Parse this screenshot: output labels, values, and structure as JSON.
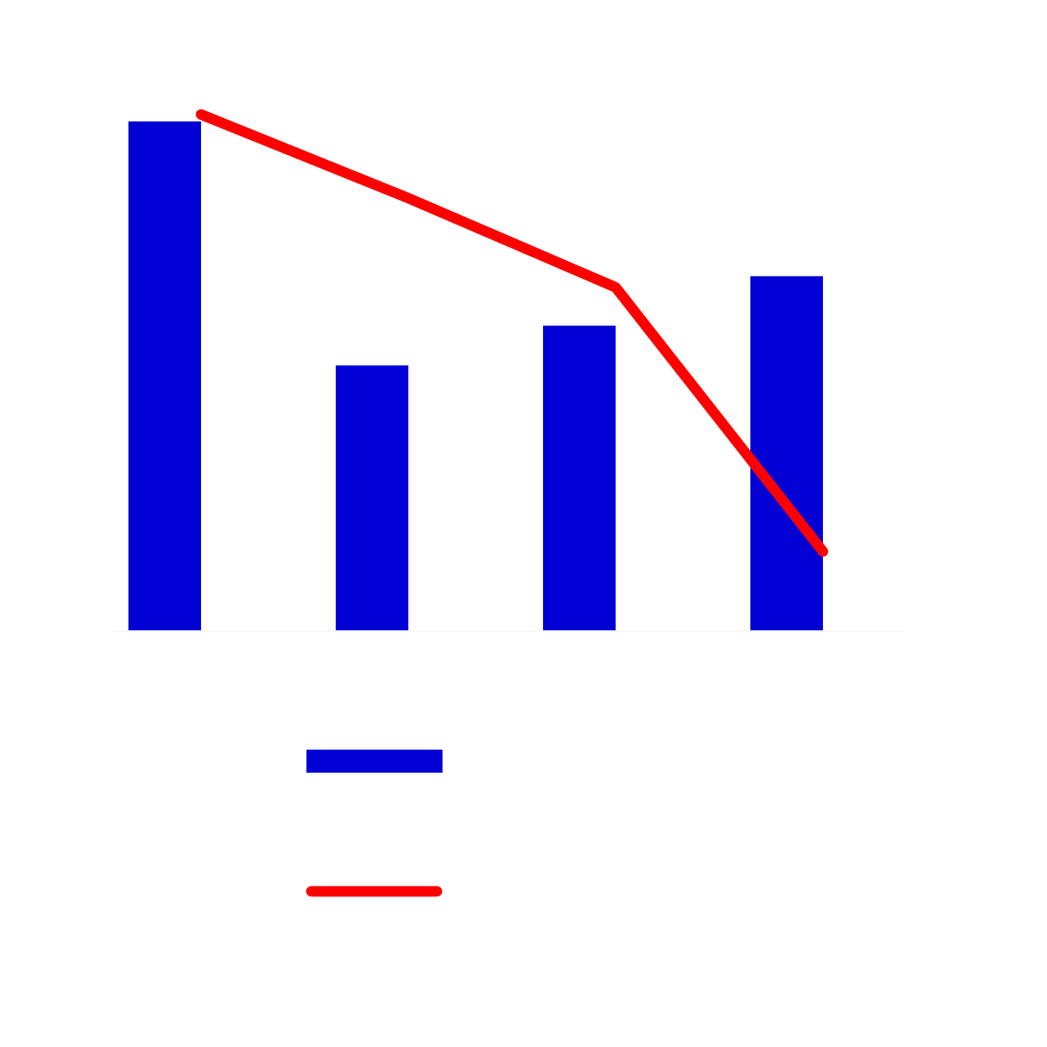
{
  "chart_data": {
    "type": "bar",
    "categories": [
      "",
      "",
      "",
      ""
    ],
    "series": [
      {
        "type": "bar",
        "values": [
          7.3,
          3.8,
          4.37,
          5.08
        ]
      },
      {
        "type": "line",
        "values": [
          7.4,
          6.2,
          4.92,
          1.13
        ]
      }
    ],
    "title": "",
    "xlabel": "",
    "ylabel": "",
    "ylim": [
      0,
      7.4
    ],
    "grid": false,
    "legend": {
      "placement": "bottom",
      "entries": [
        "",
        ""
      ]
    },
    "colors": {
      "bar": "#0000d5",
      "line": "#ff0000",
      "axis": "#f7f7f7",
      "background": "#ffffff"
    }
  }
}
